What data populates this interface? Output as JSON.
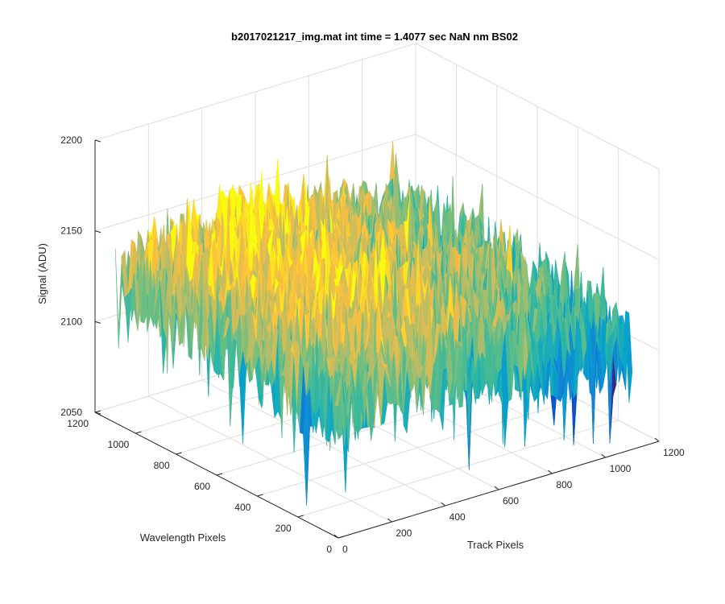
{
  "chart_data": {
    "type": "surface",
    "title": "b2017021217_img.mat int time = 1.4077 sec  NaN nm BS02",
    "xlabel": "Track Pixels",
    "ylabel": "Wavelength Pixels",
    "zlabel": "Signal (ADU)",
    "xlim": [
      0,
      1200
    ],
    "ylim": [
      0,
      1200
    ],
    "zlim": [
      2050,
      2200
    ],
    "x_ticks": [
      "0",
      "200",
      "400",
      "600",
      "800",
      "1000",
      "1200"
    ],
    "y_ticks": [
      "0",
      "200",
      "400",
      "600",
      "800",
      "1000",
      "1200"
    ],
    "z_ticks": [
      "2050",
      "2100",
      "2150",
      "2200"
    ],
    "grid": true,
    "colormap": "parula",
    "surface": {
      "rows_wavelength_0_to_1100": [
        0,
        100,
        200,
        300,
        400,
        500,
        600,
        700,
        800,
        900,
        1000,
        1100
      ],
      "cols_track_0_to_1100": [
        0,
        100,
        200,
        300,
        400,
        500,
        600,
        700,
        800,
        900,
        1000,
        1100
      ],
      "mean_signal_approx": [
        [
          2115,
          2118,
          2120,
          2122,
          2122,
          2120,
          2118,
          2115,
          2112,
          2110,
          2108,
          2105
        ],
        [
          2118,
          2122,
          2125,
          2128,
          2128,
          2125,
          2122,
          2118,
          2115,
          2112,
          2110,
          2108
        ],
        [
          2120,
          2125,
          2130,
          2133,
          2133,
          2130,
          2126,
          2122,
          2118,
          2115,
          2112,
          2110
        ],
        [
          2122,
          2128,
          2133,
          2136,
          2136,
          2133,
          2129,
          2125,
          2121,
          2118,
          2115,
          2112
        ],
        [
          2124,
          2130,
          2135,
          2138,
          2138,
          2135,
          2131,
          2127,
          2123,
          2120,
          2117,
          2114
        ],
        [
          2125,
          2131,
          2136,
          2139,
          2139,
          2136,
          2132,
          2128,
          2124,
          2121,
          2118,
          2115
        ],
        [
          2126,
          2132,
          2137,
          2140,
          2140,
          2137,
          2133,
          2129,
          2125,
          2122,
          2119,
          2116
        ],
        [
          2127,
          2133,
          2138,
          2140,
          2140,
          2138,
          2134,
          2130,
          2126,
          2122,
          2119,
          2116
        ],
        [
          2128,
          2134,
          2138,
          2141,
          2141,
          2138,
          2134,
          2130,
          2126,
          2123,
          2120,
          2117
        ],
        [
          2128,
          2134,
          2139,
          2141,
          2141,
          2139,
          2135,
          2131,
          2127,
          2123,
          2120,
          2117
        ],
        [
          2127,
          2133,
          2138,
          2140,
          2140,
          2138,
          2134,
          2130,
          2126,
          2122,
          2119,
          2116
        ],
        [
          2126,
          2132,
          2137,
          2139,
          2139,
          2137,
          2133,
          2129,
          2125,
          2121,
          2118,
          2115
        ]
      ],
      "noise_amplitude_adu": 25
    }
  }
}
